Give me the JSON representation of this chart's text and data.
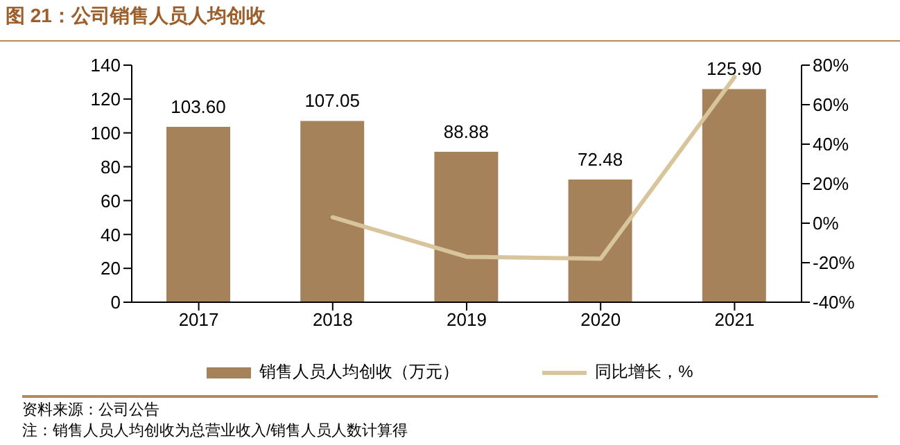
{
  "chart_data": {
    "type": "bar",
    "title": "图 21：公司销售人员人均创收",
    "categories": [
      "2017",
      "2018",
      "2019",
      "2020",
      "2021"
    ],
    "series": [
      {
        "name": "销售人员人均创收（万元）",
        "color": "#a6825a",
        "values": [
          103.6,
          107.05,
          88.88,
          72.48,
          125.9
        ],
        "value_labels": [
          "103.60",
          "107.05",
          "88.88",
          "72.48",
          "125.90"
        ]
      },
      {
        "name": "同比增长，%",
        "type": "line",
        "axis": "y2",
        "color": "#d8c59c",
        "values": [
          null,
          3,
          -17,
          -18,
          74
        ]
      }
    ],
    "ylim": [
      0,
      140
    ],
    "yticks": [
      0,
      20,
      40,
      60,
      80,
      100,
      120,
      140
    ],
    "y2lim": [
      -40,
      80
    ],
    "y2ticks": [
      {
        "value": -40,
        "label": "-40%"
      },
      {
        "value": -20,
        "label": "-20%"
      },
      {
        "value": 0,
        "label": "0%"
      },
      {
        "value": 20,
        "label": "20%"
      },
      {
        "value": 40,
        "label": "40%"
      },
      {
        "value": 60,
        "label": "60%"
      },
      {
        "value": 80,
        "label": "80%"
      }
    ],
    "legend": "bottom",
    "marker": "none",
    "line_style": "solid",
    "annotations": [
      "资料来源：公司公告",
      "注：销售人员人均创收为总营业收入/销售人员人数计算得"
    ]
  }
}
